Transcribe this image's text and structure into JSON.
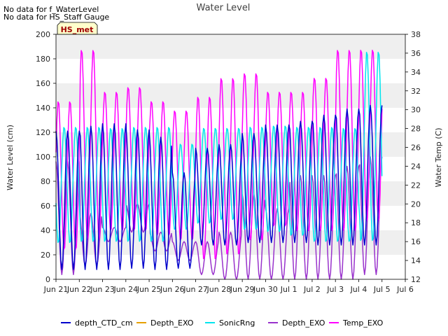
{
  "notes": [
    "No data for f_WaterLevel",
    "No data for HS_Staff Gauge"
  ],
  "badge": "HS_met",
  "chart_data": {
    "type": "line",
    "title": "Water Level",
    "ylabel": "Water Level (cm)",
    "y2label": "Water Temp (C)",
    "ylim": [
      0,
      200
    ],
    "y2lim": [
      12,
      38
    ],
    "xlim": [
      "Jun 21",
      "Jul 6"
    ],
    "x_ticks": [
      "Jun 21",
      "Jun 22",
      "Jun 23",
      "Jun 24",
      "Jun 25",
      "Jun 26",
      "Jun 27",
      "Jun 28",
      "Jun 29",
      "Jun 30",
      "Jul 1",
      "Jul 2",
      "Jul 3",
      "Jul 4",
      "Jul 5",
      "Jul 6"
    ],
    "y_ticks": [
      0,
      20,
      40,
      60,
      80,
      100,
      120,
      140,
      160,
      180,
      200
    ],
    "y2_ticks": [
      12,
      14,
      16,
      18,
      20,
      22,
      24,
      26,
      28,
      30,
      32,
      34,
      36,
      38
    ],
    "grid": "horizontal bands",
    "legend_position": "bottom",
    "series": [
      {
        "name": "depth_CTD_cm",
        "color": "#0000cc",
        "axis": "left",
        "daily_points_per_day": 2,
        "x": [
          "Jun 21",
          "Jun 22",
          "Jun 23",
          "Jun 24",
          "Jun 25",
          "Jun 26",
          "Jun 27",
          "Jun 28",
          "Jun 29",
          "Jun 30",
          "Jul 1",
          "Jul 2",
          "Jul 3",
          "Jul 4",
          "Jul 5"
        ],
        "high": [
          121,
          125,
          127,
          122,
          116,
          87,
          107,
          110,
          119,
          126,
          129,
          134,
          139,
          142,
          110
        ],
        "low": [
          8,
          8,
          8,
          9,
          8,
          9,
          28,
          28,
          30,
          30,
          30,
          28,
          28,
          28,
          28
        ]
      },
      {
        "name": "Depth_EXO",
        "color": "#e6a000",
        "axis": "left",
        "values": []
      },
      {
        "name": "SonicRng",
        "color": "#00e5ee",
        "axis": "left",
        "x": [
          "Jun 21",
          "Jun 22",
          "Jun 23",
          "Jun 24",
          "Jun 25",
          "Jun 26",
          "Jun 27",
          "Jun 28",
          "Jun 29",
          "Jun 30",
          "Jul 1",
          "Jul 2",
          "Jul 3",
          "Jul 4",
          "Jul 5"
        ],
        "high": [
          125,
          125,
          124,
          125,
          125,
          111,
          124,
          124,
          125,
          126,
          125,
          125,
          124,
          187,
          124
        ],
        "low": [
          29,
          30,
          30,
          30,
          30,
          40,
          45,
          48,
          40,
          38,
          35,
          30,
          30,
          30,
          40
        ]
      },
      {
        "name": "Depth_EXO",
        "color": "#9932cc",
        "axis": "right",
        "x": [
          "Jun 21",
          "Jun 22",
          "Jun 23",
          "Jun 24",
          "Jun 25",
          "Jun 26",
          "Jun 27",
          "Jun 28",
          "Jun 29",
          "Jun 30",
          "Jul 1",
          "Jul 2",
          "Jul 3",
          "Jul 4",
          "Jul 5"
        ],
        "high": [
          24.5,
          19.0,
          17.5,
          20.0,
          17.0,
          16.0,
          16.0,
          17.0,
          21.0,
          19.5,
          23.0,
          23.0,
          24.0,
          25.0,
          24.0
        ],
        "low": [
          12.5,
          13.5,
          16.0,
          17.0,
          15.0,
          14.0,
          12.5,
          12.0,
          12.0,
          12.0,
          12.0,
          12.0,
          12.0,
          12.5,
          13.0
        ]
      },
      {
        "name": "Temp_EXO",
        "color": "#ff00ff",
        "axis": "right",
        "x": [
          "Jun 21",
          "Jun 22",
          "Jun 23",
          "Jun 24",
          "Jun 25",
          "Jun 26",
          "Jun 27",
          "Jun 28",
          "Jun 29",
          "Jun 30",
          "Jul 1",
          "Jul 2",
          "Jul 3",
          "Jul 4",
          "Jul 5"
        ],
        "high": [
          31.0,
          36.5,
          32.0,
          32.5,
          31.0,
          30.0,
          31.5,
          33.5,
          34.0,
          32.0,
          32.0,
          33.5,
          36.5,
          36.5,
          35.0
        ],
        "low": [
          15.0,
          16.0,
          17.0,
          17.0,
          16.5,
          16.0,
          14.0,
          14.5,
          16.0,
          17.5,
          17.0,
          17.0,
          17.0,
          18.0,
          18.0
        ]
      }
    ]
  },
  "legend": [
    {
      "label": "depth_CTD_cm",
      "color": "#0000cc"
    },
    {
      "label": "Depth_EXO",
      "color": "#e6a000"
    },
    {
      "label": "SonicRng",
      "color": "#00e5ee"
    },
    {
      "label": "Depth_EXO",
      "color": "#9932cc"
    },
    {
      "label": "Temp_EXO",
      "color": "#ff00ff"
    }
  ]
}
